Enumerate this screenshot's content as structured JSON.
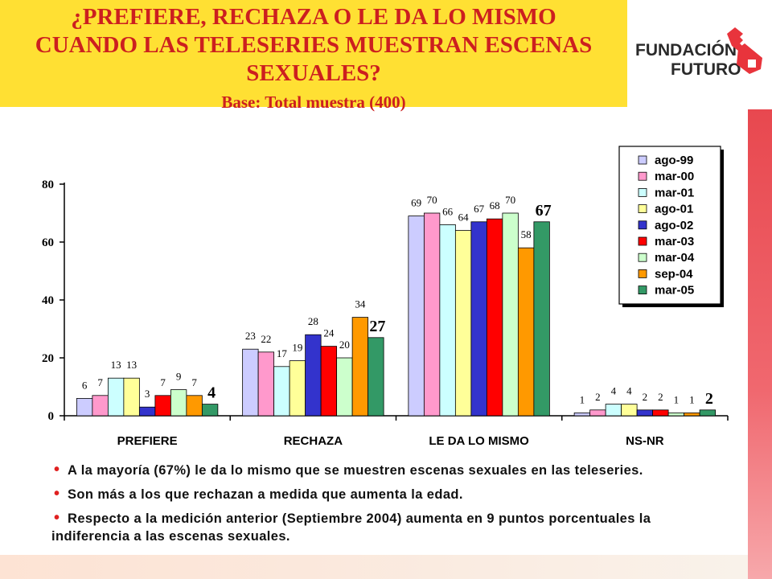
{
  "header": {
    "title_lines": [
      "¿PREFIERE, RECHAZA O LE DA LO MISMO",
      "CUANDO LAS TELESERIES MUESTRAN ESCENAS",
      "SEXUALES?"
    ],
    "subtitle": "Base: Total muestra (400)"
  },
  "logo": {
    "line1": "FUNDACIÓN",
    "line2": "FUTURO",
    "icon": "key-logo-icon"
  },
  "colors": {
    "title_bg": "#ffe033",
    "title_text": "#cc1f1f",
    "accent_red": "#e02020"
  },
  "chart_data": {
    "type": "bar",
    "categories": [
      "PREFIERE",
      "RECHAZA",
      "LE DA LO MISMO",
      "NS-NR"
    ],
    "series": [
      {
        "name": "ago-99",
        "color": "#ccccff",
        "values": [
          6,
          23,
          69,
          1
        ]
      },
      {
        "name": "mar-00",
        "color": "#ff99cc",
        "values": [
          7,
          22,
          70,
          2
        ]
      },
      {
        "name": "mar-01",
        "color": "#ccffff",
        "values": [
          13,
          17,
          66,
          4
        ]
      },
      {
        "name": "ago-01",
        "color": "#ffff99",
        "values": [
          13,
          19,
          64,
          4
        ]
      },
      {
        "name": "ago-02",
        "color": "#3333cc",
        "values": [
          3,
          28,
          67,
          2
        ]
      },
      {
        "name": "mar-03",
        "color": "#ff0000",
        "values": [
          7,
          24,
          68,
          2
        ]
      },
      {
        "name": "mar-04",
        "color": "#ccffcc",
        "values": [
          9,
          20,
          70,
          1
        ]
      },
      {
        "name": "sep-04",
        "color": "#ff9900",
        "values": [
          7,
          34,
          58,
          1
        ]
      },
      {
        "name": "mar-05",
        "color": "#339966",
        "values": [
          4,
          27,
          67,
          2
        ]
      }
    ],
    "ylim": [
      0,
      80
    ],
    "yticks": [
      0,
      20,
      40,
      60,
      80
    ],
    "grid": false,
    "legend_position": "top-right"
  },
  "bullets": [
    "A la mayoría (67%) le da lo mismo que se muestren escenas sexuales en las teleseries.",
    "Son más a los que rechazan a medida que aumenta la edad.",
    "Respecto a la medición anterior (Septiembre 2004) aumenta en 9 puntos porcentuales la indiferencia a las escenas sexuales."
  ]
}
